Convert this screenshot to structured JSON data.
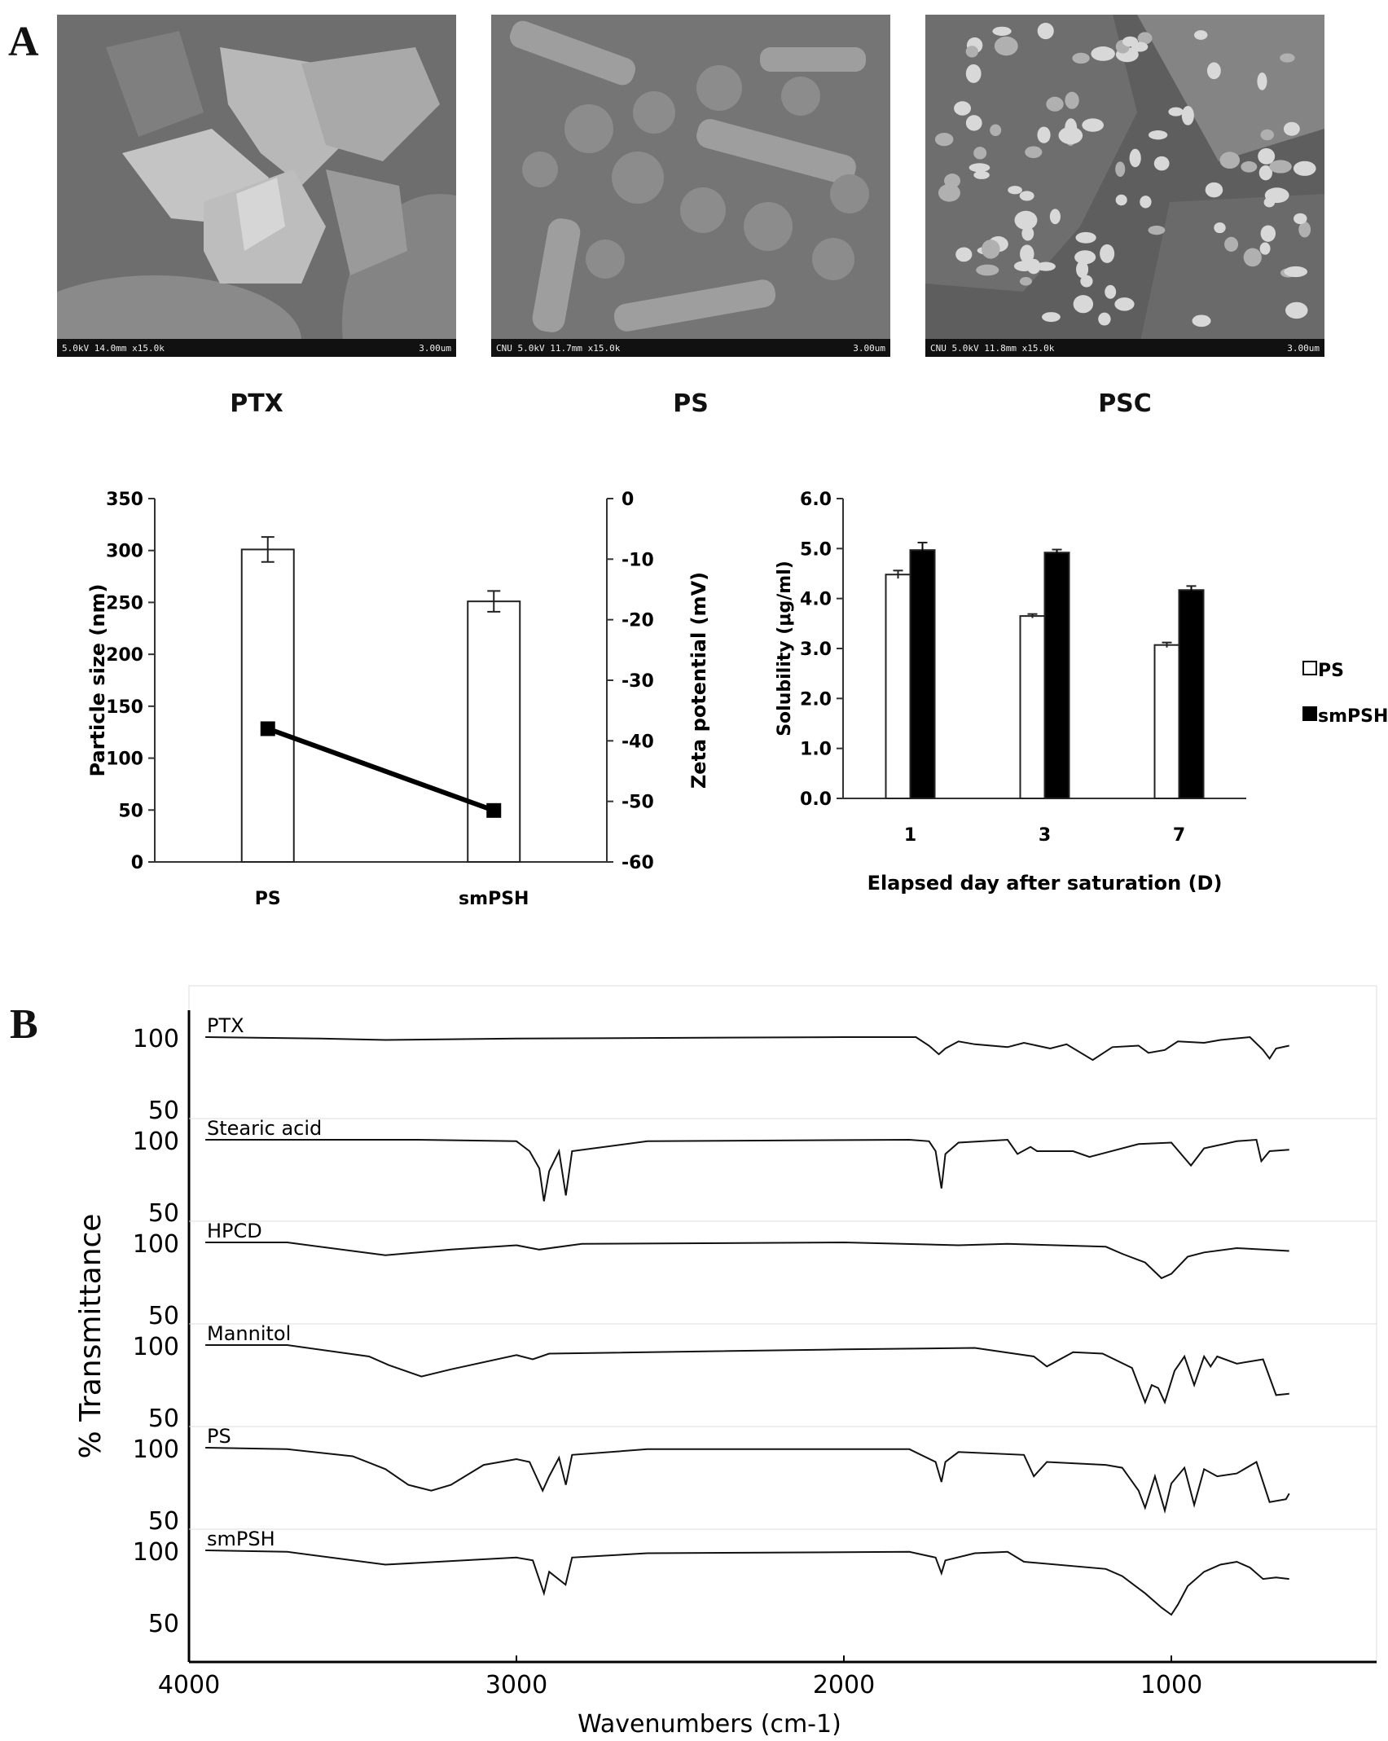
{
  "panels": {
    "a": "A",
    "b": "B"
  },
  "sem_images": [
    {
      "caption": "PTX",
      "info": "5.0kV 14.0mm x15.0k",
      "scale": "3.00um"
    },
    {
      "caption": "PS",
      "info": "CNU 5.0kV 11.7mm x15.0k",
      "scale": "3.00um"
    },
    {
      "caption": "PSC",
      "info": "CNU 5.0kV 11.8mm x15.0k",
      "scale": "3.00um"
    }
  ],
  "chart_data": [
    {
      "type": "bar",
      "categories": [
        "PS",
        "smPSH"
      ],
      "ylabel": "Particle size (nm)",
      "y2label": "Zeta potential (mV)",
      "ylim": [
        0,
        350
      ],
      "y2lim": [
        -60,
        0
      ],
      "yticks": [
        "0",
        "50",
        "100",
        "150",
        "200",
        "250",
        "300",
        "350"
      ],
      "y2ticks": [
        "0",
        "-10",
        "-20",
        "-30",
        "-40",
        "-50",
        "-60"
      ],
      "series": [
        {
          "kind": "bar",
          "axis": "left",
          "values": [
            301,
            251
          ],
          "errors": [
            12,
            10
          ]
        },
        {
          "kind": "line",
          "axis": "right",
          "values": [
            -38,
            -51.5
          ]
        }
      ]
    },
    {
      "type": "bar",
      "categories": [
        "1",
        "3",
        "7"
      ],
      "xlabel": "Elapsed day after saturation (D)",
      "ylabel": "Solubility (μg/ml)",
      "ylim": [
        0,
        6
      ],
      "yticks": [
        "0.0",
        "1.0",
        "2.0",
        "3.0",
        "4.0",
        "5.0",
        "6.0"
      ],
      "legend_position": "right",
      "series": [
        {
          "name": "PS",
          "values": [
            4.48,
            3.65,
            3.07
          ],
          "errors": [
            0.08,
            0.04,
            0.05
          ],
          "color": "#ffffff"
        },
        {
          "name": "smPSH",
          "values": [
            4.97,
            4.92,
            4.17
          ],
          "errors": [
            0.15,
            0.06,
            0.08
          ],
          "color": "#000000"
        }
      ]
    },
    {
      "type": "line",
      "xlabel": "Wavenumbers (cm-1)",
      "ylabel": "% Transmittance",
      "xlim": [
        4000,
        400
      ],
      "xticks": [
        "4000",
        "3000",
        "2000",
        "1000"
      ],
      "ytick_labels": [
        "100",
        "50"
      ],
      "series": [
        {
          "name": "PTX",
          "points": [
            [
              3950,
              100
            ],
            [
              3600,
              99
            ],
            [
              3400,
              98
            ],
            [
              3000,
              99
            ],
            [
              2000,
              100
            ],
            [
              1780,
              100
            ],
            [
              1740,
              94
            ],
            [
              1710,
              88
            ],
            [
              1690,
              92
            ],
            [
              1650,
              97
            ],
            [
              1600,
              95
            ],
            [
              1500,
              93
            ],
            [
              1450,
              96
            ],
            [
              1370,
              92
            ],
            [
              1320,
              95
            ],
            [
              1240,
              84
            ],
            [
              1180,
              93
            ],
            [
              1100,
              94
            ],
            [
              1070,
              89
            ],
            [
              1020,
              91
            ],
            [
              980,
              97
            ],
            [
              900,
              96
            ],
            [
              850,
              98
            ],
            [
              760,
              100
            ],
            [
              720,
              91
            ],
            [
              700,
              85
            ],
            [
              680,
              92
            ],
            [
              640,
              94
            ]
          ]
        },
        {
          "name": "Stearic acid",
          "points": [
            [
              3950,
              100
            ],
            [
              3300,
              100
            ],
            [
              3000,
              99
            ],
            [
              2960,
              92
            ],
            [
              2930,
              80
            ],
            [
              2916,
              57
            ],
            [
              2900,
              78
            ],
            [
              2870,
              92
            ],
            [
              2849,
              61
            ],
            [
              2830,
              92
            ],
            [
              2600,
              99
            ],
            [
              1800,
              100
            ],
            [
              1740,
              99
            ],
            [
              1720,
              92
            ],
            [
              1702,
              66
            ],
            [
              1690,
              90
            ],
            [
              1650,
              98
            ],
            [
              1500,
              100
            ],
            [
              1470,
              90
            ],
            [
              1430,
              95
            ],
            [
              1410,
              92
            ],
            [
              1300,
              92
            ],
            [
              1250,
              88
            ],
            [
              1200,
              91
            ],
            [
              1100,
              97
            ],
            [
              1000,
              98
            ],
            [
              940,
              82
            ],
            [
              900,
              94
            ],
            [
              800,
              99
            ],
            [
              740,
              100
            ],
            [
              725,
              85
            ],
            [
              700,
              92
            ],
            [
              640,
              93
            ]
          ]
        },
        {
          "name": "HPCD",
          "points": [
            [
              3950,
              100
            ],
            [
              3700,
              100
            ],
            [
              3400,
              91
            ],
            [
              3200,
              95
            ],
            [
              3000,
              98
            ],
            [
              2930,
              95
            ],
            [
              2800,
              99
            ],
            [
              2000,
              100
            ],
            [
              1650,
              98
            ],
            [
              1500,
              99
            ],
            [
              1200,
              97
            ],
            [
              1150,
              92
            ],
            [
              1080,
              86
            ],
            [
              1030,
              75
            ],
            [
              1000,
              78
            ],
            [
              950,
              90
            ],
            [
              900,
              93
            ],
            [
              800,
              96
            ],
            [
              640,
              94
            ]
          ]
        },
        {
          "name": "Mannitol",
          "points": [
            [
              3950,
              100
            ],
            [
              3700,
              100
            ],
            [
              3450,
              92
            ],
            [
              3390,
              86
            ],
            [
              3290,
              78
            ],
            [
              3200,
              83
            ],
            [
              3000,
              93
            ],
            [
              2950,
              90
            ],
            [
              2900,
              94
            ],
            [
              2000,
              97
            ],
            [
              1600,
              98
            ],
            [
              1420,
              92
            ],
            [
              1380,
              85
            ],
            [
              1300,
              95
            ],
            [
              1210,
              94
            ],
            [
              1120,
              84
            ],
            [
              1080,
              60
            ],
            [
              1060,
              72
            ],
            [
              1040,
              70
            ],
            [
              1020,
              60
            ],
            [
              990,
              82
            ],
            [
              960,
              92
            ],
            [
              930,
              72
            ],
            [
              900,
              92
            ],
            [
              880,
              85
            ],
            [
              860,
              92
            ],
            [
              800,
              87
            ],
            [
              720,
              90
            ],
            [
              680,
              65
            ],
            [
              640,
              66
            ]
          ]
        },
        {
          "name": "PS",
          "points": [
            [
              3950,
              100
            ],
            [
              3700,
              99
            ],
            [
              3500,
              94
            ],
            [
              3400,
              85
            ],
            [
              3330,
              74
            ],
            [
              3260,
              70
            ],
            [
              3200,
              74
            ],
            [
              3100,
              88
            ],
            [
              3000,
              92
            ],
            [
              2960,
              90
            ],
            [
              2920,
              70
            ],
            [
              2900,
              80
            ],
            [
              2870,
              93
            ],
            [
              2849,
              74
            ],
            [
              2830,
              95
            ],
            [
              2600,
              99
            ],
            [
              1800,
              99
            ],
            [
              1720,
              90
            ],
            [
              1702,
              76
            ],
            [
              1690,
              90
            ],
            [
              1650,
              97
            ],
            [
              1450,
              95
            ],
            [
              1420,
              80
            ],
            [
              1380,
              90
            ],
            [
              1200,
              88
            ],
            [
              1150,
              86
            ],
            [
              1100,
              70
            ],
            [
              1080,
              58
            ],
            [
              1050,
              80
            ],
            [
              1020,
              56
            ],
            [
              1000,
              75
            ],
            [
              960,
              86
            ],
            [
              930,
              60
            ],
            [
              900,
              85
            ],
            [
              860,
              80
            ],
            [
              800,
              82
            ],
            [
              740,
              90
            ],
            [
              700,
              62
            ],
            [
              650,
              64
            ],
            [
              640,
              68
            ]
          ]
        },
        {
          "name": "smPSH",
          "points": [
            [
              3950,
              100
            ],
            [
              3700,
              99
            ],
            [
              3400,
              90
            ],
            [
              3000,
              95
            ],
            [
              2950,
              93
            ],
            [
              2916,
              70
            ],
            [
              2900,
              85
            ],
            [
              2850,
              76
            ],
            [
              2830,
              95
            ],
            [
              2600,
              98
            ],
            [
              1800,
              99
            ],
            [
              1720,
              95
            ],
            [
              1702,
              84
            ],
            [
              1690,
              93
            ],
            [
              1600,
              98
            ],
            [
              1500,
              99
            ],
            [
              1450,
              92
            ],
            [
              1200,
              87
            ],
            [
              1150,
              82
            ],
            [
              1080,
              70
            ],
            [
              1030,
              60
            ],
            [
              1000,
              55
            ],
            [
              980,
              62
            ],
            [
              950,
              75
            ],
            [
              900,
              85
            ],
            [
              850,
              90
            ],
            [
              800,
              92
            ],
            [
              760,
              88
            ],
            [
              720,
              80
            ],
            [
              680,
              81
            ],
            [
              640,
              80
            ]
          ]
        }
      ]
    }
  ]
}
